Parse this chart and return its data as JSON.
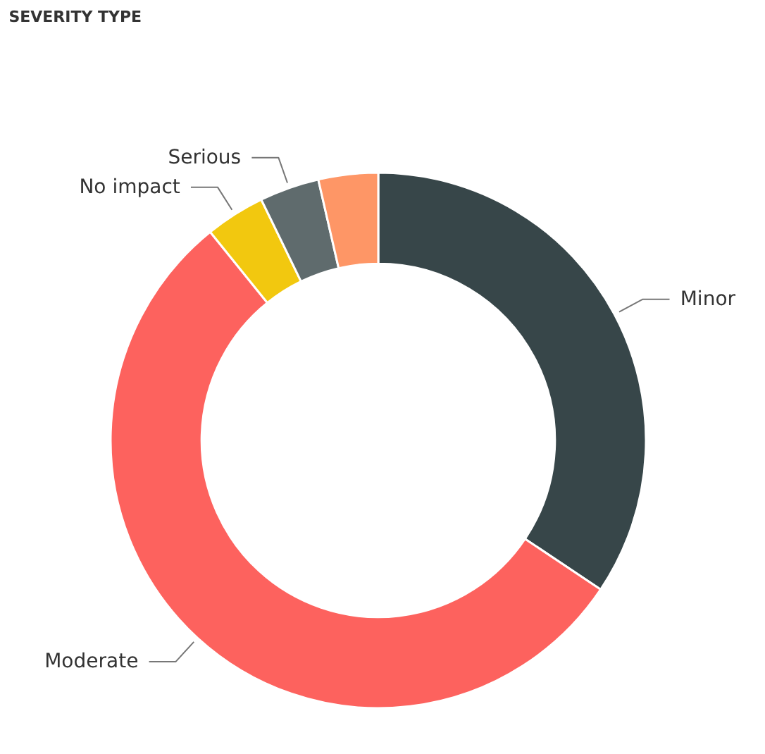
{
  "chart_data": {
    "type": "donut",
    "title": "SEVERITY TYPE",
    "categories": [
      "Minor",
      "Moderate",
      "No impact",
      "Serious",
      null
    ],
    "values": [
      34.4,
      54.8,
      3.6,
      3.6,
      3.6
    ],
    "colors": [
      "#374649",
      "#fd625e",
      "#f2c80f",
      "#5f6b6d",
      "#fe9666"
    ]
  }
}
